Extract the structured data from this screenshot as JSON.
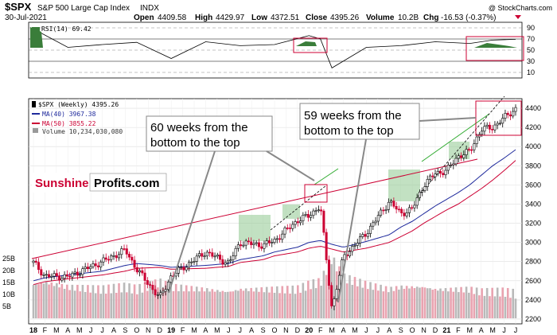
{
  "header": {
    "symbol": "$SPX",
    "name": "S&P 500 Large Cap Index",
    "exchange": "INDX",
    "date": "30-Jul-2021",
    "open_label": "Open",
    "open": "4409.58",
    "high_label": "High",
    "high": "4429.97",
    "low_label": "Low",
    "low": "4372.51",
    "close_label": "Close",
    "close": "4395.26",
    "volume_label": "Volume",
    "volume": "10.2B",
    "chg_label": "Chg",
    "chg": "-16.53 (-0.37%)",
    "watermark": "@ StockCharts.com"
  },
  "rsi": {
    "label": "RSI(14) 69.42",
    "levels": [
      "90",
      "70",
      "50",
      "30",
      "10"
    ]
  },
  "legend": {
    "main": "$SPX (Weekly) 4395.26",
    "ma40": "MA(40) 3967.38",
    "ma50": "MA(50) 3855.22",
    "volume": "Volume 10,234,030,080"
  },
  "annotations": {
    "box1_line1": "60 weeks from the",
    "box1_line2": "bottom to the top",
    "box2_line1": "59 weeks from the",
    "box2_line2": "bottom to the top"
  },
  "logo": {
    "part1": "Sunshine",
    "part2": "Profits.com"
  },
  "colors": {
    "up": "#000000",
    "down": "#cc0033",
    "ma40": "#1f2a9c",
    "ma50": "#cc0033",
    "trend": "#cc0033",
    "greenline": "#2eaa2e",
    "greenbox": "#8fc98f",
    "rsi_fill": "#3a7d3a"
  },
  "chart_data": [
    {
      "type": "line",
      "title": "RSI(14)",
      "ylim": [
        0,
        100
      ],
      "ticks": [
        90,
        70,
        50,
        30,
        10
      ],
      "x": [
        "2018-01",
        "2018-04",
        "2018-07",
        "2018-10",
        "2019-01",
        "2019-04",
        "2019-07",
        "2019-10",
        "2020-01",
        "2020-02",
        "2020-03",
        "2020-06",
        "2020-09",
        "2020-12",
        "2021-03",
        "2021-05",
        "2021-07"
      ],
      "series": [
        {
          "name": "RSI(14)",
          "values": [
            88,
            55,
            60,
            64,
            35,
            65,
            58,
            60,
            76,
            70,
            18,
            55,
            58,
            65,
            62,
            68,
            69.42
          ]
        }
      ]
    },
    {
      "type": "candlestick",
      "title": "$SPX (Weekly) 4395.26",
      "ylim": [
        2150,
        4500
      ],
      "y_ticks": [
        4400,
        4200,
        4000,
        3800,
        3600,
        3400,
        3200,
        3000,
        2800,
        2600,
        2400,
        2200
      ],
      "x_labels": [
        "18",
        "F",
        "M",
        "A",
        "M",
        "J",
        "J",
        "A",
        "S",
        "O",
        "N",
        "D",
        "19",
        "F",
        "M",
        "A",
        "M",
        "J",
        "J",
        "A",
        "S",
        "O",
        "N",
        "D",
        "20",
        "F",
        "M",
        "A",
        "M",
        "J",
        "J",
        "A",
        "S",
        "O",
        "N",
        "D",
        "21",
        "F",
        "M",
        "A",
        "M",
        "J",
        "J"
      ],
      "x": [
        "2018-01",
        "2018-02",
        "2018-04",
        "2018-07",
        "2018-09",
        "2018-10",
        "2018-12",
        "2019-01",
        "2019-04",
        "2019-06",
        "2019-07",
        "2019-09",
        "2019-10",
        "2019-12",
        "2020-01",
        "2020-02",
        "2020-03",
        "2020-04",
        "2020-06",
        "2020-08",
        "2020-09",
        "2020-10",
        "2020-11",
        "2020-12",
        "2021-01",
        "2021-02",
        "2021-03",
        "2021-04",
        "2021-05",
        "2021-06",
        "2021-07"
      ],
      "series": [
        {
          "name": "$SPX",
          "values": [
            2790,
            2650,
            2640,
            2800,
            2920,
            2720,
            2420,
            2650,
            2900,
            2780,
            3000,
            2970,
            3020,
            3230,
            3280,
            3380,
            2300,
            2850,
            3100,
            3430,
            3300,
            3350,
            3600,
            3720,
            3750,
            3900,
            3950,
            4180,
            4200,
            4300,
            4395
          ]
        },
        {
          "name": "MA(40) 3967.38",
          "values": [
            2600,
            2630,
            2660,
            2700,
            2760,
            2780,
            2760,
            2740,
            2760,
            2780,
            2820,
            2860,
            2900,
            2950,
            3000,
            3020,
            2980,
            2950,
            3010,
            3080,
            3160,
            3220,
            3300,
            3380,
            3450,
            3520,
            3600,
            3700,
            3800,
            3880,
            3967.38
          ]
        },
        {
          "name": "MA(50) 3855.22",
          "values": [
            2560,
            2590,
            2620,
            2660,
            2700,
            2730,
            2740,
            2720,
            2730,
            2750,
            2790,
            2820,
            2860,
            2900,
            2940,
            2960,
            2930,
            2900,
            2940,
            3000,
            3060,
            3120,
            3200,
            3270,
            3340,
            3400,
            3480,
            3560,
            3650,
            3750,
            3855.22
          ]
        }
      ]
    },
    {
      "type": "bar",
      "title": "Volume 10,234,030,080",
      "ylim": [
        0,
        25
      ],
      "y_ticks": [
        "25B",
        "20B",
        "15B",
        "10B",
        "5B"
      ],
      "series": [
        {
          "name": "Volume",
          "values": [
            14,
            15,
            13,
            12,
            13,
            12,
            15,
            13,
            12,
            11,
            12,
            12,
            12,
            12,
            14,
            15,
            25,
            17,
            14,
            12,
            13,
            13,
            13,
            12,
            12,
            12,
            12,
            11,
            11,
            11,
            10.2
          ]
        }
      ]
    }
  ]
}
